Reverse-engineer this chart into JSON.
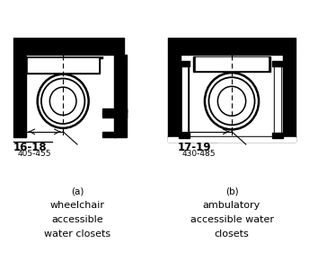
{
  "fig_width": 3.44,
  "fig_height": 3.0,
  "dpi": 100,
  "background": "#ffffff",
  "label_a_line1": "(a)",
  "label_a_line2": "wheelchair",
  "label_a_line3": "accessible",
  "label_a_line4": "water closets",
  "label_b_line1": "(b)",
  "label_b_line2": "ambulatory",
  "label_b_line3": "accessible water",
  "label_b_line4": "closets",
  "dim_a_inches": "16-18",
  "dim_a_mm": "405-455",
  "dim_b_inches": "17-19",
  "dim_b_mm": "430-485"
}
